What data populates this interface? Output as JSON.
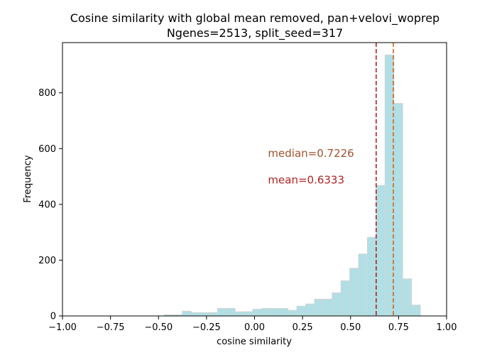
{
  "chart_data": {
    "type": "bar",
    "title": "Cosine similarity with global mean removed, pan+velovi_woprep",
    "subtitle": "Ngenes=2513, split_seed=317",
    "xlabel": "cosine similarity",
    "ylabel": "Frequency",
    "xlim": [
      -1.0,
      1.0
    ],
    "ylim": [
      0,
      980
    ],
    "x_ticks": [
      -1.0,
      -0.75,
      -0.5,
      -0.25,
      0.0,
      0.25,
      0.5,
      0.75,
      1.0
    ],
    "x_tick_labels": [
      "−1.00",
      "−0.75",
      "−0.50",
      "−0.25",
      "0.00",
      "0.25",
      "0.50",
      "0.75",
      "1.00"
    ],
    "y_ticks": [
      0,
      200,
      400,
      600,
      800
    ],
    "y_tick_labels": [
      "0",
      "200",
      "400",
      "600",
      "800"
    ],
    "bar_color": "#b0dfe5",
    "bar_edge_color": "#d3d3d3",
    "bins": [
      {
        "x0": -0.4684,
        "x1": -0.4225,
        "count": 4
      },
      {
        "x0": -0.4225,
        "x1": -0.3765,
        "count": 4
      },
      {
        "x0": -0.3765,
        "x1": -0.3306,
        "count": 17
      },
      {
        "x0": -0.3306,
        "x1": -0.2847,
        "count": 12
      },
      {
        "x0": -0.2847,
        "x1": -0.2388,
        "count": 12
      },
      {
        "x0": -0.2388,
        "x1": -0.1929,
        "count": 12
      },
      {
        "x0": -0.1929,
        "x1": -0.147,
        "count": 27
      },
      {
        "x0": -0.147,
        "x1": -0.101,
        "count": 27
      },
      {
        "x0": -0.101,
        "x1": -0.0551,
        "count": 15
      },
      {
        "x0": -0.0551,
        "x1": -0.0092,
        "count": 15
      },
      {
        "x0": -0.0092,
        "x1": 0.0367,
        "count": 24
      },
      {
        "x0": 0.0367,
        "x1": 0.0826,
        "count": 27
      },
      {
        "x0": 0.0826,
        "x1": 0.1286,
        "count": 27
      },
      {
        "x0": 0.1286,
        "x1": 0.1745,
        "count": 27
      },
      {
        "x0": 0.1745,
        "x1": 0.2204,
        "count": 20
      },
      {
        "x0": 0.2204,
        "x1": 0.2663,
        "count": 35
      },
      {
        "x0": 0.2663,
        "x1": 0.3122,
        "count": 43
      },
      {
        "x0": 0.3122,
        "x1": 0.3582,
        "count": 60
      },
      {
        "x0": 0.3582,
        "x1": 0.4041,
        "count": 60
      },
      {
        "x0": 0.4041,
        "x1": 0.45,
        "count": 83
      },
      {
        "x0": 0.45,
        "x1": 0.4959,
        "count": 126
      },
      {
        "x0": 0.4959,
        "x1": 0.5418,
        "count": 171
      },
      {
        "x0": 0.5418,
        "x1": 0.5878,
        "count": 222
      },
      {
        "x0": 0.5878,
        "x1": 0.6337,
        "count": 282
      },
      {
        "x0": 0.6337,
        "x1": 0.6796,
        "count": 468
      },
      {
        "x0": 0.6796,
        "x1": 0.7255,
        "count": 936
      },
      {
        "x0": 0.7255,
        "x1": 0.7714,
        "count": 762
      },
      {
        "x0": 0.7714,
        "x1": 0.8173,
        "count": 133
      },
      {
        "x0": 0.8173,
        "x1": 0.8633,
        "count": 39
      }
    ],
    "vlines": [
      {
        "name": "mean",
        "x": 0.6333,
        "color": "#b22222",
        "style": "dashed"
      },
      {
        "name": "median",
        "x": 0.7226,
        "color": "#d2691e",
        "style": "dashed"
      }
    ],
    "annotations": [
      {
        "text": "median=0.7226",
        "color": "#a0522d",
        "x": 0.07,
        "y": 570
      },
      {
        "text": "mean=0.6333",
        "color": "#b22222",
        "x": 0.07,
        "y": 475
      }
    ],
    "grid": false,
    "legend": "none"
  }
}
